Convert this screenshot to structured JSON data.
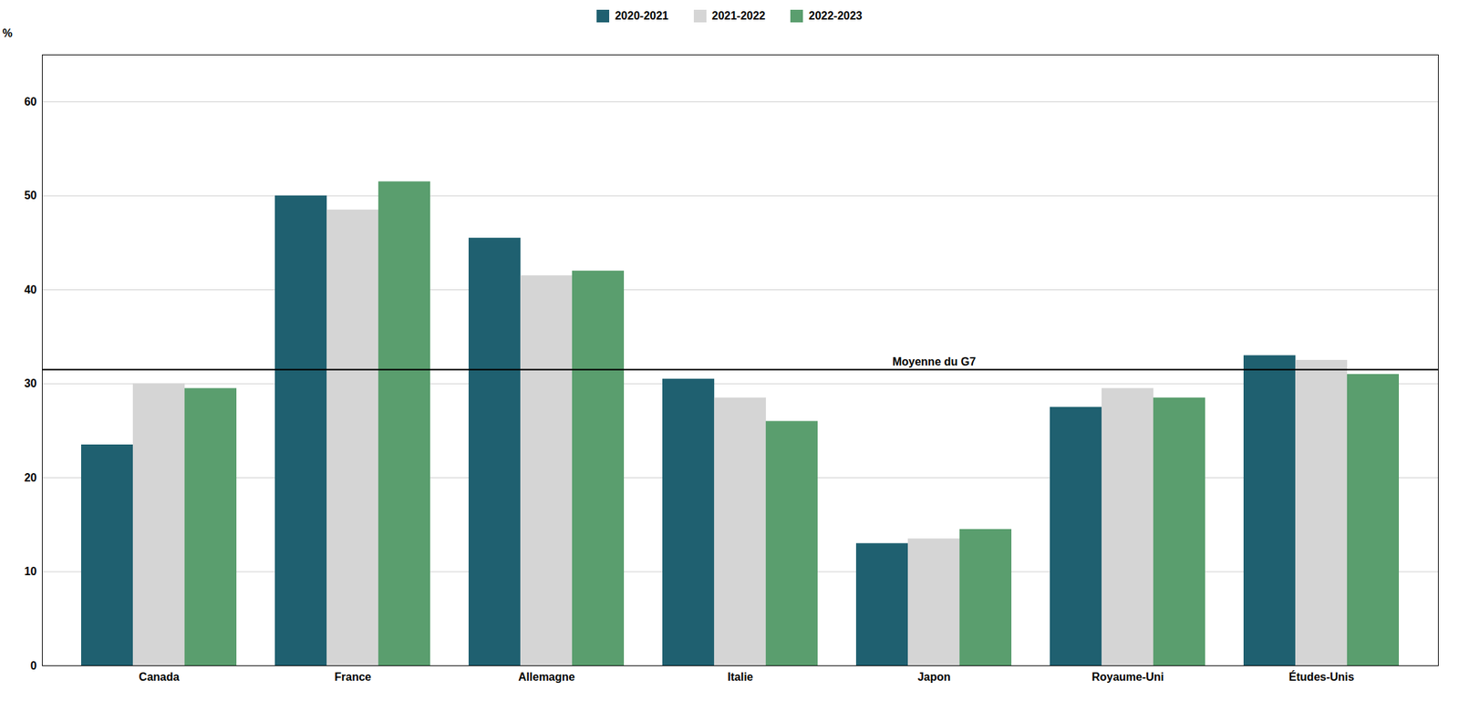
{
  "chart_data": {
    "type": "bar",
    "categories": [
      "Canada",
      "France",
      "Allemagne",
      "Italie",
      "Japon",
      "Royaume-Uni",
      "Études-Unis"
    ],
    "series": [
      {
        "name": "2020-2021",
        "color": "#1f6070",
        "values": [
          23.5,
          50.0,
          45.5,
          30.5,
          13.0,
          27.5,
          33.0
        ]
      },
      {
        "name": "2021-2022",
        "color": "#d5d5d5",
        "values": [
          30.0,
          48.5,
          41.5,
          28.5,
          13.5,
          29.5,
          32.5
        ]
      },
      {
        "name": "2022-2023",
        "color": "#5a9e6e",
        "values": [
          29.5,
          51.5,
          42.0,
          26.0,
          14.5,
          28.5,
          31.0
        ]
      }
    ],
    "ylabel": "%",
    "ylim": [
      0,
      65
    ],
    "yticks": [
      0,
      10,
      20,
      30,
      40,
      50,
      60
    ],
    "grid": true,
    "legend": "top",
    "annotations": [
      {
        "type": "hline",
        "y": 31.5,
        "text": "Moyenne du G7",
        "color": "#000000"
      }
    ]
  }
}
